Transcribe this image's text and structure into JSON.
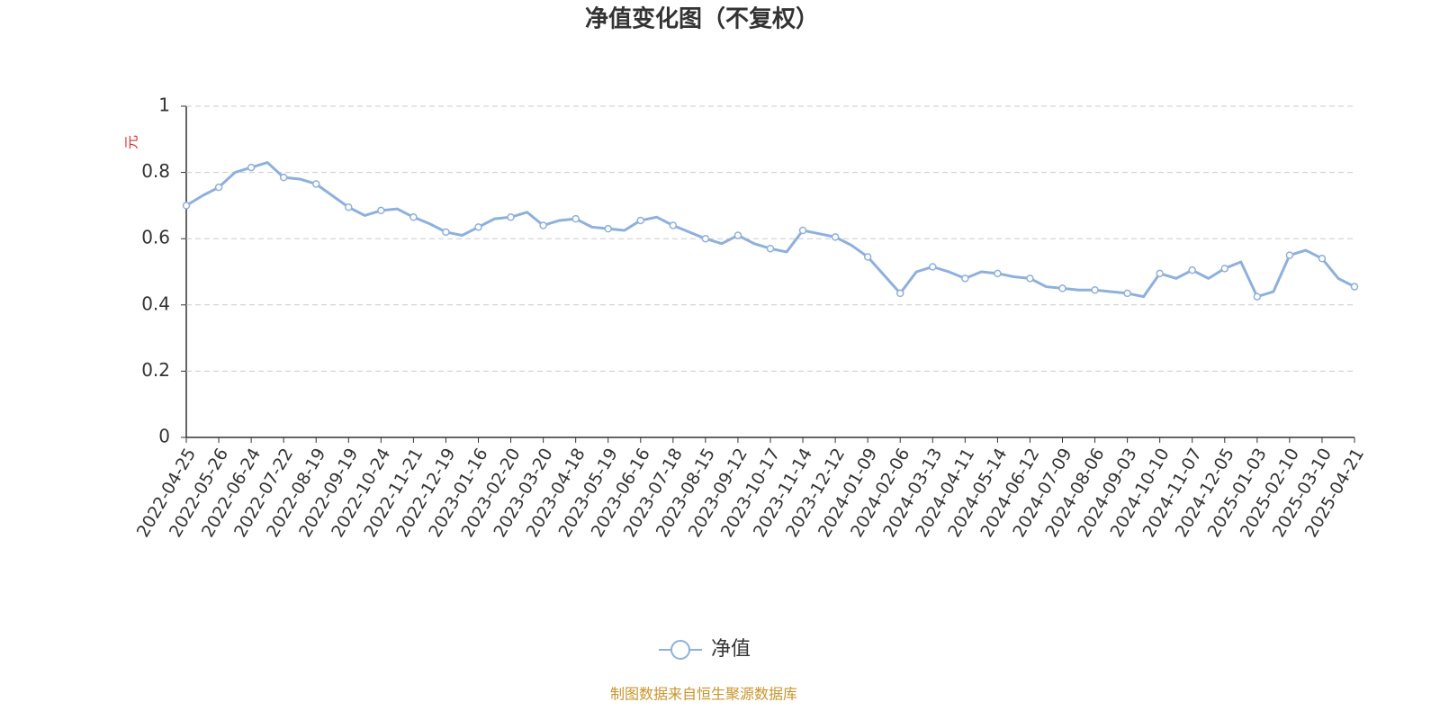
{
  "chart_data": {
    "type": "line",
    "title": "净值变化图（不复权）",
    "y_label": "元",
    "footer": "制图数据来自恒生聚源数据库",
    "categories": [
      "2022-04-25",
      null,
      "2022-05-26",
      null,
      "2022-06-24",
      null,
      "2022-07-22",
      null,
      "2022-08-19",
      null,
      "2022-09-19",
      null,
      "2022-10-24",
      null,
      "2022-11-21",
      null,
      "2022-12-19",
      null,
      "2023-01-16",
      null,
      "2023-02-20",
      null,
      "2023-03-20",
      null,
      "2023-04-18",
      null,
      "2023-05-19",
      null,
      "2023-06-16",
      null,
      "2023-07-18",
      null,
      "2023-08-15",
      null,
      "2023-09-12",
      null,
      "2023-10-17",
      null,
      "2023-11-14",
      null,
      "2023-12-12",
      null,
      "2024-01-09",
      null,
      "2024-02-06",
      null,
      "2024-03-13",
      null,
      "2024-04-11",
      null,
      "2024-05-14",
      null,
      "2024-06-12",
      null,
      "2024-07-09",
      null,
      "2024-08-06",
      null,
      "2024-09-03",
      null,
      "2024-10-10",
      null,
      "2024-11-07",
      null,
      "2024-12-05",
      null,
      "2025-01-03",
      null,
      "2025-02-10",
      null,
      "2025-03-10",
      null,
      "2025-04-21"
    ],
    "series": [
      {
        "name": "净值",
        "color": "#8eb0dc",
        "values": [
          0.7,
          0.73,
          0.755,
          0.8,
          0.815,
          0.83,
          0.785,
          0.78,
          0.765,
          0.73,
          0.695,
          0.67,
          0.685,
          0.69,
          0.665,
          0.645,
          0.62,
          0.61,
          0.635,
          0.66,
          0.665,
          0.68,
          0.64,
          0.655,
          0.66,
          0.635,
          0.63,
          0.625,
          0.655,
          0.665,
          0.64,
          0.62,
          0.6,
          0.585,
          0.61,
          0.585,
          0.57,
          0.56,
          0.625,
          0.615,
          0.605,
          0.58,
          0.545,
          0.49,
          0.435,
          0.5,
          0.515,
          0.5,
          0.48,
          0.5,
          0.495,
          0.485,
          0.48,
          0.455,
          0.45,
          0.445,
          0.445,
          0.44,
          0.435,
          0.425,
          0.495,
          0.48,
          0.505,
          0.48,
          0.51,
          0.53,
          0.425,
          0.44,
          0.55,
          0.565,
          0.54,
          0.48,
          0.455
        ]
      }
    ],
    "ylim": [
      0,
      1
    ],
    "yticks": [
      0,
      0.2,
      0.4,
      0.6,
      0.8,
      1
    ],
    "grid": true
  }
}
